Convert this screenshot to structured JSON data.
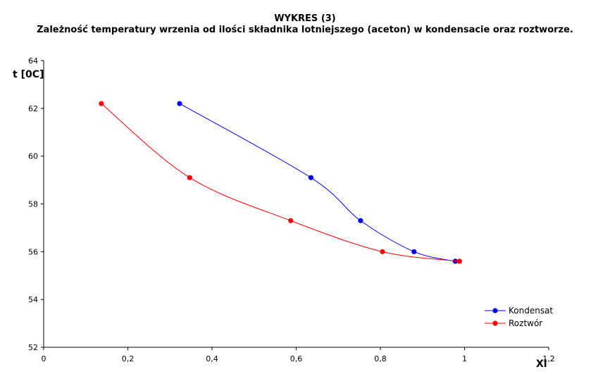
{
  "chart_data": {
    "type": "line",
    "title": "WYKRES (3)",
    "subtitle": "Zależność temperatury wrzenia od ilości składnika lotniejszego (aceton) w kondensacie oraz roztworze.",
    "xlabel": "Xl",
    "ylabel": "t [0C]",
    "xlim": [
      0,
      1.2
    ],
    "ylim": [
      52,
      64
    ],
    "xticks": [
      0,
      0.2,
      0.4,
      0.6,
      0.8,
      1,
      1.2
    ],
    "xtick_labels": [
      "0",
      "0,2",
      "0,4",
      "0,6",
      "0,8",
      "1",
      "1,2"
    ],
    "yticks": [
      52,
      54,
      56,
      58,
      60,
      62,
      64
    ],
    "ytick_labels": [
      "52",
      "54",
      "56",
      "58",
      "60",
      "62",
      "64"
    ],
    "grid": false,
    "legend_position": "right",
    "series": [
      {
        "name": "Kondensat",
        "color": "#0000ff",
        "x": [
          0.323,
          0.635,
          0.753,
          0.88,
          0.978
        ],
        "y": [
          62.2,
          59.1,
          57.3,
          56.0,
          55.6
        ]
      },
      {
        "name": "Roztwór",
        "color": "#ff0000",
        "x": [
          0.137,
          0.347,
          0.587,
          0.805,
          0.988
        ],
        "y": [
          62.2,
          59.1,
          57.3,
          56.0,
          55.6
        ]
      }
    ]
  }
}
